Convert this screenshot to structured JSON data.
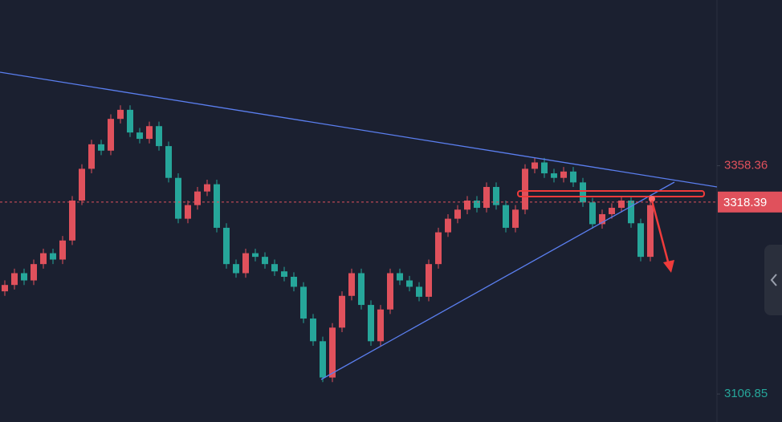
{
  "chart_data": {
    "type": "candlestick",
    "open": [
      3220,
      3227,
      3240,
      3232,
      3250,
      3262,
      3255,
      3276,
      3320,
      3355,
      3382,
      3375,
      3410,
      3420,
      3395,
      3388,
      3402,
      3380,
      3345,
      3300,
      3315,
      3330,
      3338,
      3290,
      3250,
      3240,
      3262,
      3258,
      3250,
      3242,
      3236,
      3225,
      3190,
      3165,
      3125,
      3180,
      3215,
      3240,
      3205,
      3165,
      3200,
      3240,
      3232,
      3225,
      3214,
      3250,
      3285,
      3300,
      3310,
      3320,
      3312,
      3335,
      3315,
      3290,
      3310,
      3355,
      3362,
      3350,
      3345,
      3352,
      3340,
      3318,
      3294,
      3305,
      3312,
      3320,
      3295,
      3258
    ],
    "high": [
      3232,
      3245,
      3245,
      3255,
      3267,
      3267,
      3281,
      3325,
      3360,
      3387,
      3387,
      3415,
      3425,
      3425,
      3400,
      3407,
      3407,
      3385,
      3350,
      3320,
      3335,
      3343,
      3343,
      3295,
      3255,
      3267,
      3267,
      3263,
      3255,
      3247,
      3241,
      3230,
      3195,
      3170,
      3185,
      3220,
      3245,
      3245,
      3210,
      3205,
      3245,
      3245,
      3237,
      3230,
      3255,
      3290,
      3305,
      3315,
      3325,
      3325,
      3340,
      3340,
      3320,
      3315,
      3360,
      3367,
      3367,
      3355,
      3357,
      3357,
      3345,
      3323,
      3310,
      3317,
      3325,
      3325,
      3300,
      3320
    ],
    "low": [
      3215,
      3222,
      3227,
      3227,
      3245,
      3250,
      3250,
      3271,
      3315,
      3350,
      3370,
      3370,
      3405,
      3390,
      3383,
      3383,
      3375,
      3340,
      3295,
      3295,
      3310,
      3325,
      3285,
      3245,
      3235,
      3235,
      3253,
      3245,
      3237,
      3231,
      3220,
      3185,
      3160,
      3120,
      3120,
      3175,
      3210,
      3200,
      3160,
      3160,
      3195,
      3227,
      3220,
      3209,
      3209,
      3245,
      3280,
      3295,
      3305,
      3307,
      3307,
      3310,
      3285,
      3285,
      3305,
      3350,
      3345,
      3340,
      3340,
      3335,
      3313,
      3289,
      3289,
      3300,
      3307,
      3290,
      3253,
      3253
    ],
    "close": [
      3227,
      3240,
      3232,
      3250,
      3262,
      3255,
      3276,
      3320,
      3355,
      3382,
      3375,
      3410,
      3420,
      3395,
      3388,
      3402,
      3380,
      3345,
      3300,
      3315,
      3330,
      3338,
      3290,
      3250,
      3240,
      3262,
      3258,
      3250,
      3242,
      3236,
      3225,
      3190,
      3165,
      3125,
      3180,
      3215,
      3240,
      3205,
      3165,
      3200,
      3240,
      3232,
      3225,
      3214,
      3250,
      3285,
      3300,
      3310,
      3320,
      3312,
      3335,
      3315,
      3290,
      3310,
      3355,
      3362,
      3350,
      3345,
      3352,
      3340,
      3318,
      3294,
      3305,
      3312,
      3320,
      3295,
      3258,
      3315
    ],
    "up_color": "#e0515c",
    "down_color": "#26a69a",
    "ylim": [
      3076,
      3541
    ],
    "yticks": [
      3358.36,
      3106.85
    ],
    "ytick_colors": [
      "#e0515c",
      "#26a69a"
    ],
    "last_price": 3318.39,
    "last_price_color": "#e0515c"
  }
}
